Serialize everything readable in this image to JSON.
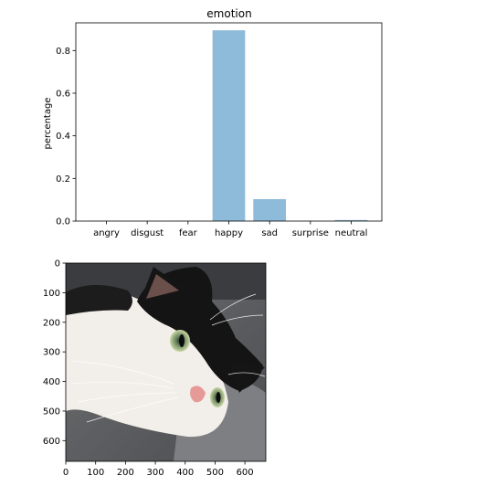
{
  "chart_data": [
    {
      "type": "bar",
      "title": "emotion",
      "xlabel": "",
      "ylabel": "percentage",
      "categories": [
        "angry",
        "disgust",
        "fear",
        "happy",
        "sad",
        "surprise",
        "neutral"
      ],
      "values": [
        0.0005,
        0.0,
        0.0003,
        0.895,
        0.103,
        0.0,
        0.005
      ],
      "ylim": [
        0,
        0.93
      ],
      "yticks": [
        0.0,
        0.2,
        0.4,
        0.6,
        0.8
      ],
      "ytick_labels": [
        "0.0",
        "0.2",
        "0.4",
        "0.6",
        "0.8"
      ],
      "bar_color": "#8fbbda",
      "grid": false,
      "legend": "none"
    },
    {
      "type": "image",
      "subject": "black-and-white cat lying on a grey couch",
      "xlim": [
        0,
        670
      ],
      "ylim": [
        670,
        0
      ],
      "xticks": [
        0,
        100,
        200,
        300,
        400,
        500,
        600
      ],
      "yticks": [
        0,
        100,
        200,
        300,
        400,
        500,
        600
      ],
      "xtick_labels": [
        "0",
        "100",
        "200",
        "300",
        "400",
        "500",
        "600"
      ],
      "ytick_labels": [
        "0",
        "100",
        "200",
        "300",
        "400",
        "500",
        "600"
      ]
    }
  ]
}
